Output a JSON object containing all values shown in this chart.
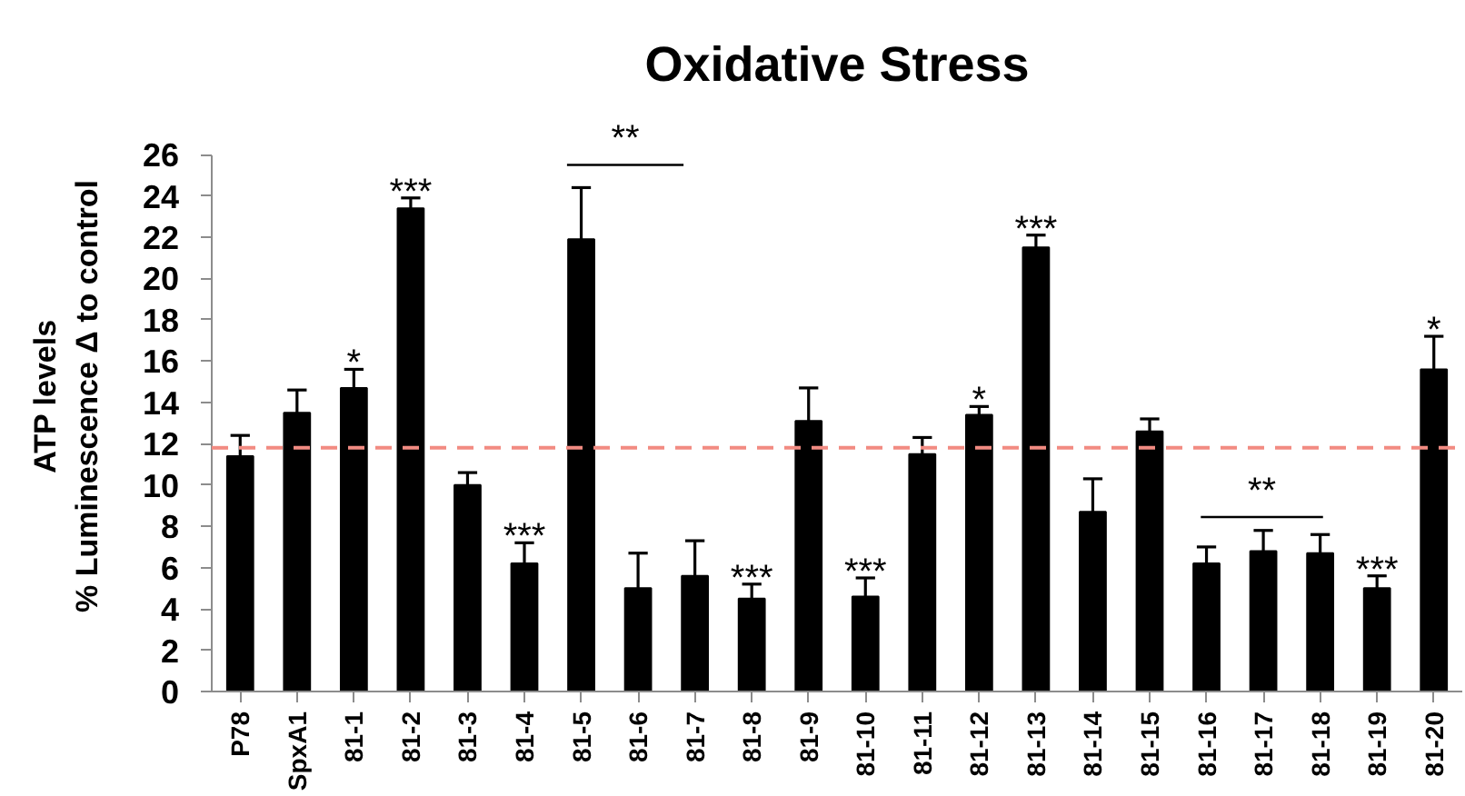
{
  "chart_data": {
    "type": "bar",
    "title": "Oxidative Stress",
    "ylabel": "ATP levels\n% Luminescence Δ to control",
    "categories": [
      "P78",
      "SpxA1",
      "81-1",
      "81-2",
      "81-3",
      "81-4",
      "81-5",
      "81-6",
      "81-7",
      "81-8",
      "81-9",
      "81-10",
      "81-11",
      "81-12",
      "81-13",
      "81-14",
      "81-15",
      "81-16",
      "81-17",
      "81-18",
      "81-19",
      "81-20"
    ],
    "values": [
      11.4,
      13.5,
      14.7,
      23.4,
      10.0,
      6.2,
      21.9,
      5.0,
      5.6,
      4.5,
      13.1,
      4.6,
      11.5,
      13.4,
      21.5,
      8.7,
      12.6,
      6.2,
      6.8,
      6.7,
      5.0,
      15.6
    ],
    "errors": [
      [
        11.4,
        12.4
      ],
      [
        13.5,
        14.6
      ],
      [
        14.7,
        15.6
      ],
      [
        23.4,
        23.9
      ],
      [
        10.0,
        10.6
      ],
      [
        6.2,
        7.2
      ],
      [
        21.9,
        24.4
      ],
      [
        5.0,
        6.7
      ],
      [
        5.6,
        7.3
      ],
      [
        4.5,
        5.2
      ],
      [
        13.1,
        14.7
      ],
      [
        4.6,
        5.5
      ],
      [
        11.5,
        12.3
      ],
      [
        13.4,
        13.8
      ],
      [
        21.5,
        22.1
      ],
      [
        8.7,
        10.3
      ],
      [
        12.6,
        13.2
      ],
      [
        6.2,
        7.0
      ],
      [
        6.8,
        7.8
      ],
      [
        6.7,
        7.6
      ],
      [
        5.0,
        5.6
      ],
      [
        15.6,
        17.2
      ]
    ],
    "color": "#000000",
    "ylim": [
      0,
      26
    ],
    "yticks": [
      0,
      2,
      4,
      6,
      8,
      10,
      12,
      14,
      16,
      18,
      20,
      22,
      24,
      26
    ],
    "ref_lines": [
      {
        "axis": "y",
        "value": 11.8,
        "color": "#f28b82",
        "line_style": "dashed"
      }
    ],
    "annotations": [
      {
        "text": "*",
        "x": "81-1",
        "y": 15.6
      },
      {
        "text": "***",
        "x": "81-2",
        "y": 23.9
      },
      {
        "text": "***",
        "x": "81-4",
        "y": 7.2
      },
      "**",
      {
        "text": "***",
        "x": "81-8",
        "y": 5.2
      },
      {
        "text": "***",
        "x": "81-10",
        "y": 5.5
      },
      {
        "text": "*",
        "x": "81-12",
        "y": 13.8
      },
      {
        "text": "***",
        "x": "81-13",
        "y": 22.1
      },
      "**",
      {
        "text": "***",
        "x": "81-19",
        "y": 5.6
      },
      {
        "text": "*",
        "x": "81-20",
        "y": 17.2
      }
    ]
  }
}
